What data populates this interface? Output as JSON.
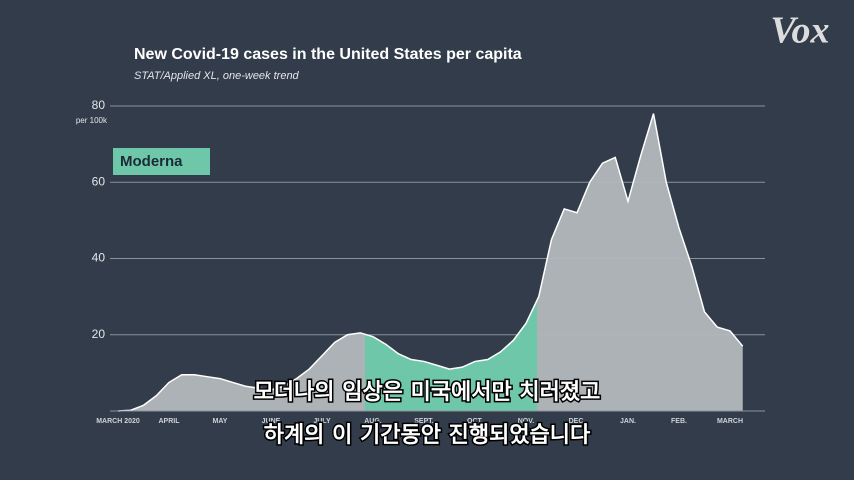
{
  "chart_data": {
    "type": "area",
    "title": "New Covid-19 cases in the United States per capita",
    "subtitle": "STAT/Applied XL, one-week trend",
    "y_label": "per 100k",
    "annotation": "Moderna",
    "categories": [
      "MARCH 2020",
      null,
      null,
      null,
      "APRIL",
      null,
      null,
      null,
      "MAY",
      null,
      null,
      null,
      "JUNE",
      null,
      null,
      null,
      "JULY",
      null,
      null,
      null,
      "AUG.",
      null,
      null,
      null,
      "SEPT.",
      null,
      null,
      null,
      "OCT.",
      null,
      null,
      null,
      "NOV.",
      null,
      null,
      null,
      "DEC.",
      null,
      null,
      null,
      "JAN.",
      null,
      null,
      null,
      "FEB.",
      null,
      null,
      null,
      "MARCH",
      null
    ],
    "values": [
      0,
      0.2,
      1.5,
      4,
      7.5,
      9.5,
      9.5,
      9,
      8.5,
      7.5,
      6.5,
      6,
      5.5,
      6.5,
      8.5,
      11,
      14.5,
      18,
      20,
      20.5,
      19.5,
      17.5,
      15,
      13.5,
      13,
      12,
      11,
      11.5,
      13,
      13.5,
      15.5,
      18.5,
      23,
      30,
      45,
      53,
      52,
      60,
      65,
      66.5,
      55,
      67,
      78,
      60,
      48,
      38,
      26,
      22,
      21,
      17
    ],
    "color": "#b4b8bc",
    "highlight_color": "#6fc7a9",
    "ylim": [
      0,
      80
    ],
    "yticks": [
      20,
      40,
      60,
      80
    ],
    "grid": true
  },
  "overlay": {
    "logo": "Vox",
    "subtitles": [
      "모더나의 임상은 미국에서만 치러졌고",
      "하계의 이 기간동안 진행되었습니다"
    ]
  }
}
